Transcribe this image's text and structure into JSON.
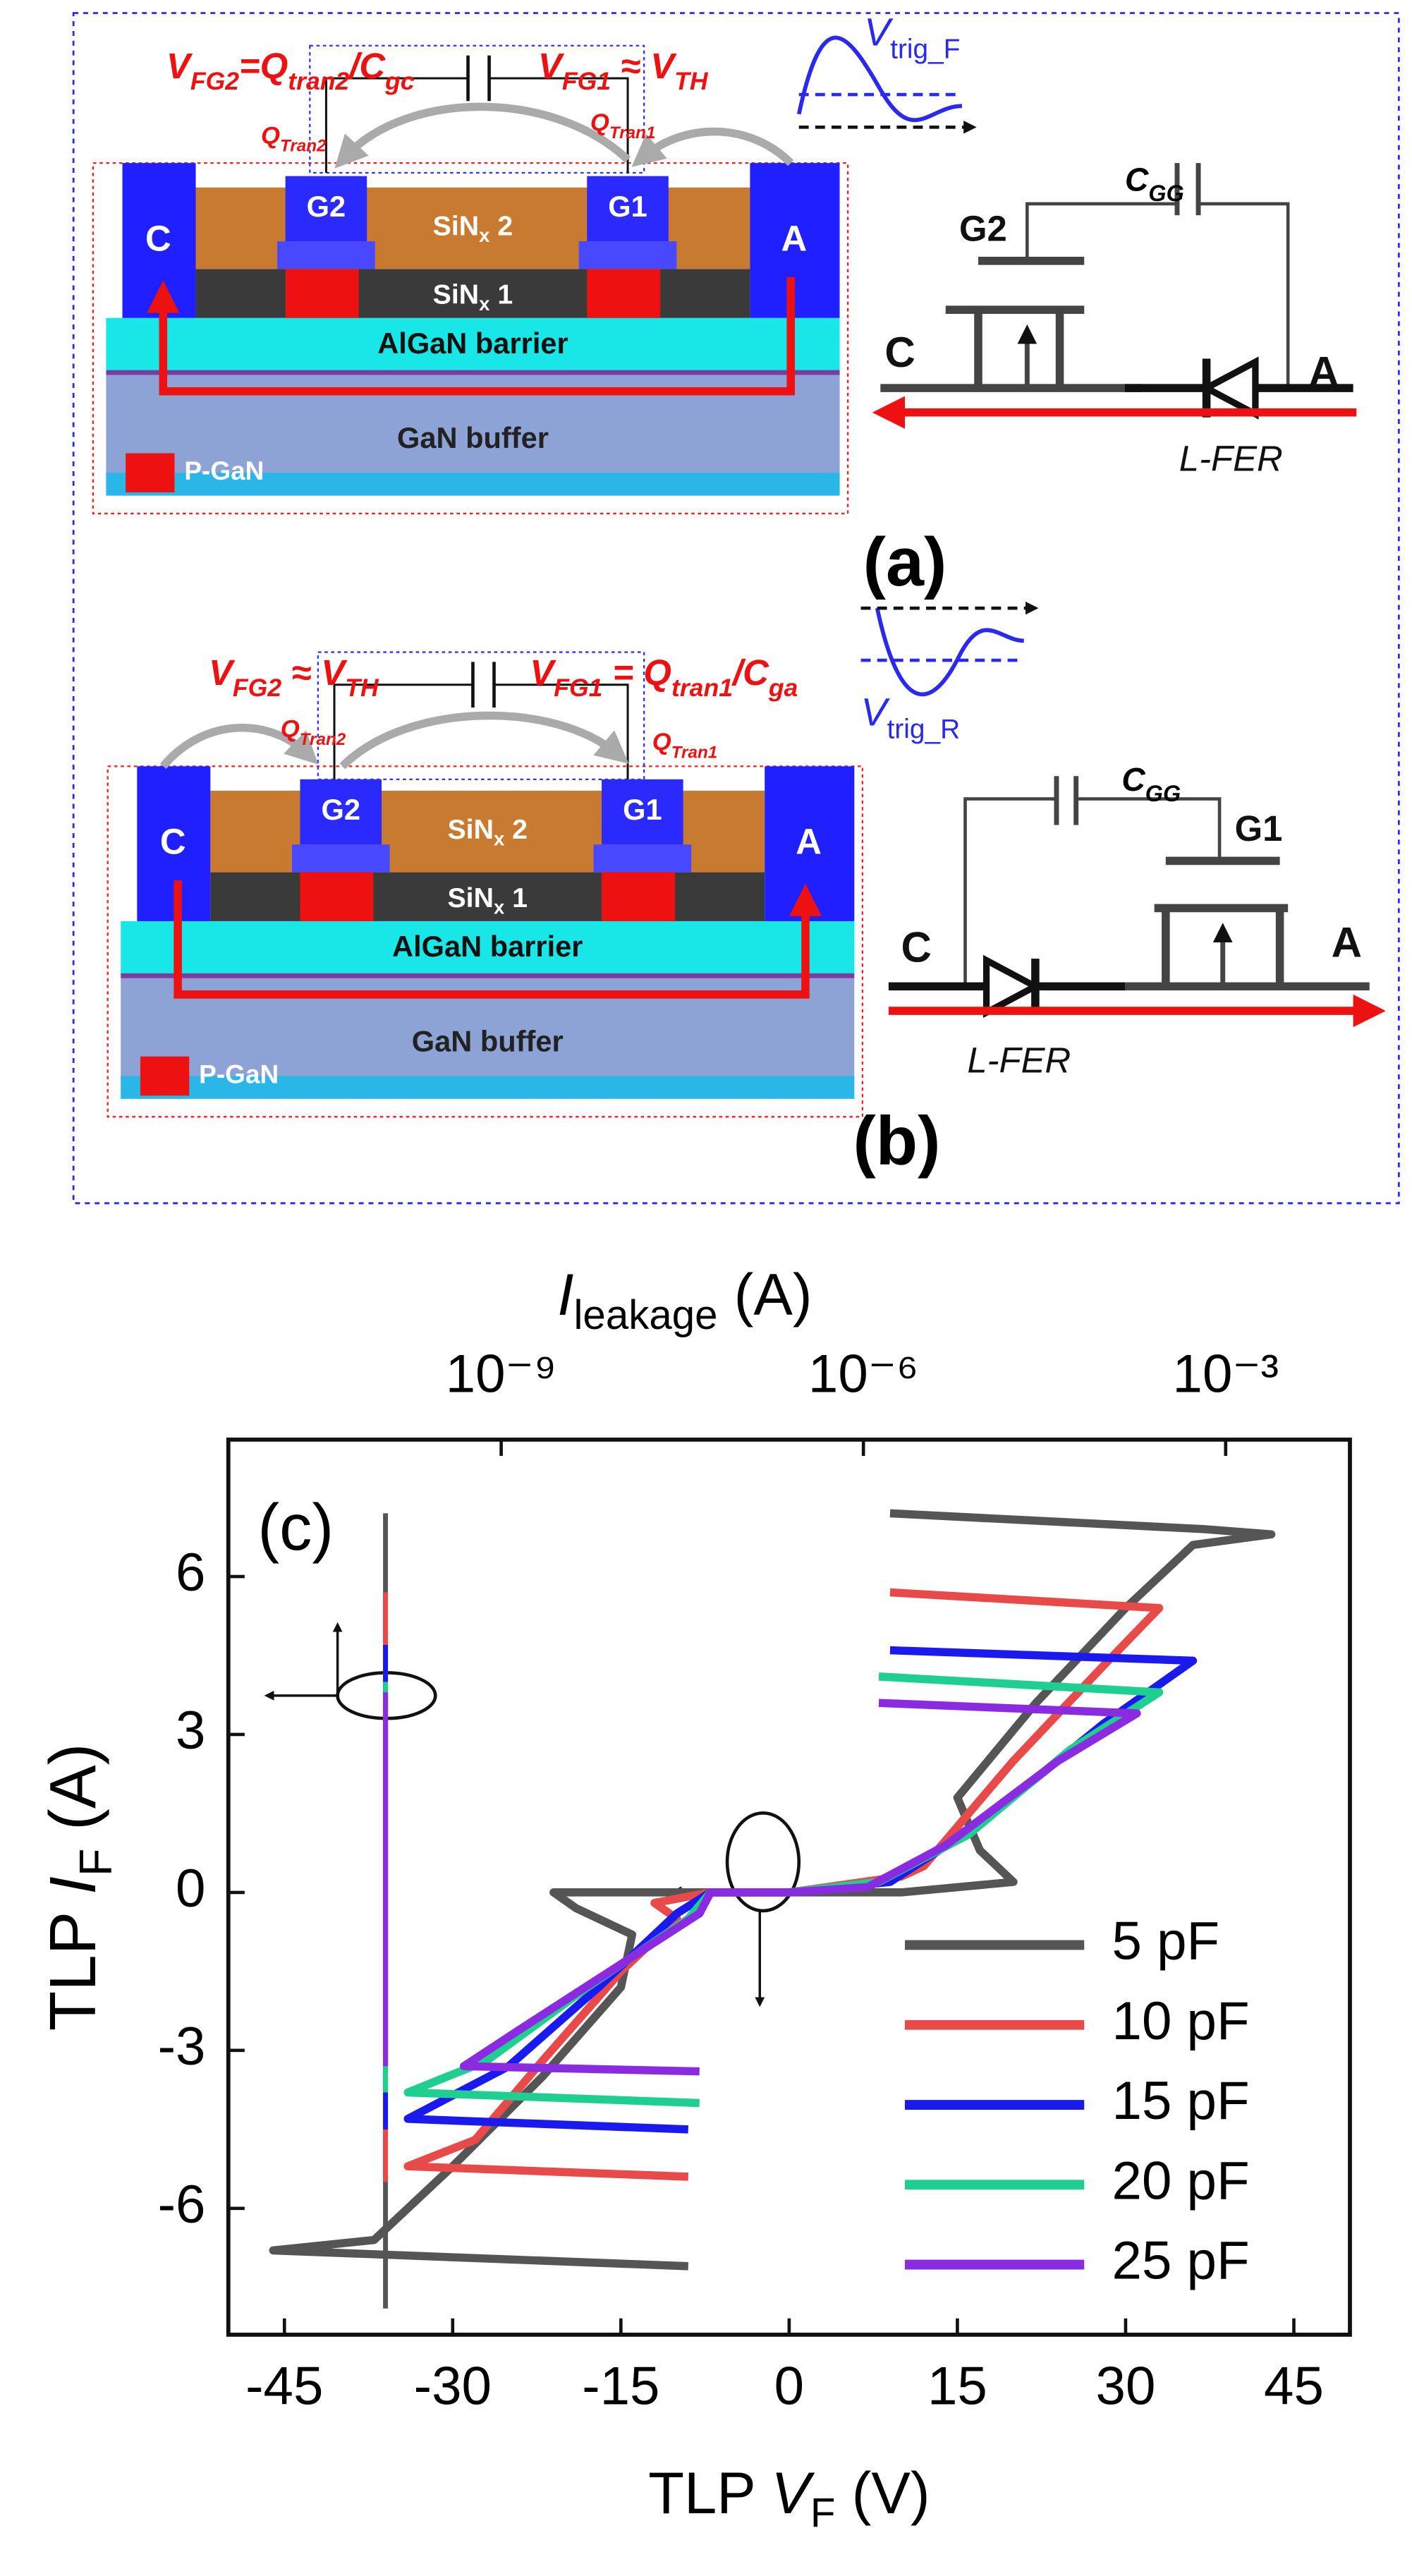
{
  "diagram_a": {
    "eq_left": [
      "V",
      "FG2",
      "=Q",
      "tran2",
      "/C",
      "gc"
    ],
    "eq_right": [
      "V",
      "FG1",
      " ≈  V",
      "TH"
    ],
    "q_left": [
      "Q",
      "Tran2"
    ],
    "q_right": [
      "Q",
      "Tran1"
    ],
    "trigger": [
      "V",
      "trig_F"
    ],
    "device": {
      "cathode": "C",
      "anode": "A",
      "gate_left": "G2",
      "gate_right": "G1",
      "sin2": [
        "SiN",
        "x",
        " 2"
      ],
      "sin1": [
        "SiN",
        "x",
        " 1"
      ],
      "barrier": "AlGaN barrier",
      "buffer": "GaN buffer",
      "pgan": "P-GaN"
    },
    "circuit": {
      "gate": "G2",
      "cap": [
        "C",
        "GG"
      ],
      "cathode": "C",
      "anode": "A",
      "diode": "L-FER"
    },
    "panel": "(a)"
  },
  "diagram_b": {
    "eq_left": [
      "V",
      "FG2",
      " ≈  V",
      "TH"
    ],
    "eq_right": [
      "V",
      "FG1",
      " = Q",
      "tran1",
      "/C",
      "ga"
    ],
    "q_left": [
      "Q",
      "Tran2"
    ],
    "q_right": [
      "Q",
      "Tran1"
    ],
    "trigger": [
      "V",
      "trig_R"
    ],
    "device": {
      "cathode": "C",
      "anode": "A",
      "gate_left": "G2",
      "gate_right": "G1",
      "sin2": [
        "SiN",
        "x",
        " 2"
      ],
      "sin1": [
        "SiN",
        "x",
        " 1"
      ],
      "barrier": "AlGaN barrier",
      "buffer": "GaN buffer",
      "pgan": "P-GaN"
    },
    "circuit": {
      "gate": "G1",
      "cap": [
        "C",
        "GG"
      ],
      "cathode": "C",
      "anode": "A",
      "diode": "L-FER"
    },
    "panel": "(b)"
  },
  "chart_data": {
    "type": "line",
    "annotation": "(c)",
    "x_label": [
      "TLP ",
      "V",
      "F",
      " (V)"
    ],
    "y_label": [
      "TLP ",
      "I",
      "F",
      " (A)"
    ],
    "x2_label": [
      "I",
      "leakage",
      " (A)"
    ],
    "xlim": [
      -50,
      50
    ],
    "xticks": [
      -45,
      -30,
      -15,
      0,
      15,
      30,
      45
    ],
    "ylim": [
      -8.4,
      8.6
    ],
    "yticks": [
      -6,
      -3,
      0,
      3,
      6
    ],
    "x2lim": [
      5.5e-12,
      0.0107
    ],
    "x2scale": "log",
    "x2ticks": [
      {
        "value": 1e-09,
        "label": "10⁻⁹"
      },
      {
        "value": 1e-06,
        "label": "10⁻⁶"
      },
      {
        "value": 0.001,
        "label": "10⁻³"
      }
    ],
    "series": [
      {
        "name": "5 pF",
        "color": "#555555",
        "x": [
          9,
          37,
          43,
          36,
          30,
          22,
          15,
          17,
          20,
          10,
          0,
          -8,
          -14,
          -21,
          -19,
          -14,
          -15,
          -22,
          -30,
          -37,
          -46,
          -9
        ],
        "values": [
          7.2,
          6.9,
          6.8,
          6.6,
          5.4,
          3.6,
          1.8,
          0.8,
          0.2,
          0,
          0,
          0,
          0,
          0,
          -0.3,
          -0.8,
          -1.8,
          -3.5,
          -5.2,
          -6.6,
          -6.8,
          -7.1
        ],
        "leakage_x2": [
          1.1e-10,
          1.1e-10
        ],
        "leakage_values": [
          7.2,
          -7.9
        ]
      },
      {
        "name": "10 pF",
        "color": "#e84a4a",
        "x": [
          9,
          33,
          28,
          20,
          12,
          10,
          0,
          -7,
          -12,
          -10,
          -15,
          -22,
          -28,
          -34,
          -9
        ],
        "values": [
          5.7,
          5.4,
          4.3,
          2.5,
          0.5,
          0.3,
          0,
          0,
          -0.2,
          -0.5,
          -1.5,
          -3.2,
          -4.7,
          -5.2,
          -5.4
        ],
        "leakage_x2": [
          1.1e-10,
          1.1e-10
        ],
        "leakage_values": [
          5.7,
          -5.5
        ]
      },
      {
        "name": "15 pF",
        "color": "#1a1aee",
        "x": [
          9,
          36,
          28,
          17,
          9,
          0,
          -7,
          -10,
          -17,
          -25,
          -34,
          -9
        ],
        "values": [
          4.6,
          4.4,
          3.2,
          1.3,
          0.2,
          0,
          0,
          -0.4,
          -1.8,
          -3.3,
          -4.3,
          -4.5
        ],
        "leakage_x2": [
          1.1e-10,
          1.1e-10
        ],
        "leakage_values": [
          4.7,
          -4.5
        ]
      },
      {
        "name": "20 pF",
        "color": "#1ecf8f",
        "x": [
          8,
          33,
          25,
          16,
          8,
          0,
          -7,
          -9,
          -18,
          -27,
          -34,
          -8
        ],
        "values": [
          4.1,
          3.8,
          2.7,
          1.1,
          0.2,
          0,
          0,
          -0.5,
          -1.8,
          -3.2,
          -3.8,
          -4.0
        ],
        "leakage_x2": [
          1.1e-10,
          1.1e-10
        ],
        "leakage_values": [
          4.0,
          -3.8
        ]
      },
      {
        "name": "25 pF",
        "color": "#8a2be2",
        "x": [
          8,
          31,
          24,
          14,
          7,
          0,
          -7,
          -8,
          -16,
          -24,
          -29,
          -8
        ],
        "values": [
          3.6,
          3.4,
          2.5,
          0.9,
          0.1,
          0,
          0,
          -0.4,
          -1.5,
          -2.6,
          -3.3,
          -3.4
        ],
        "leakage_x2": [
          1.1e-10,
          1.1e-10
        ],
        "leakage_values": [
          3.8,
          -3.3
        ]
      }
    ]
  }
}
